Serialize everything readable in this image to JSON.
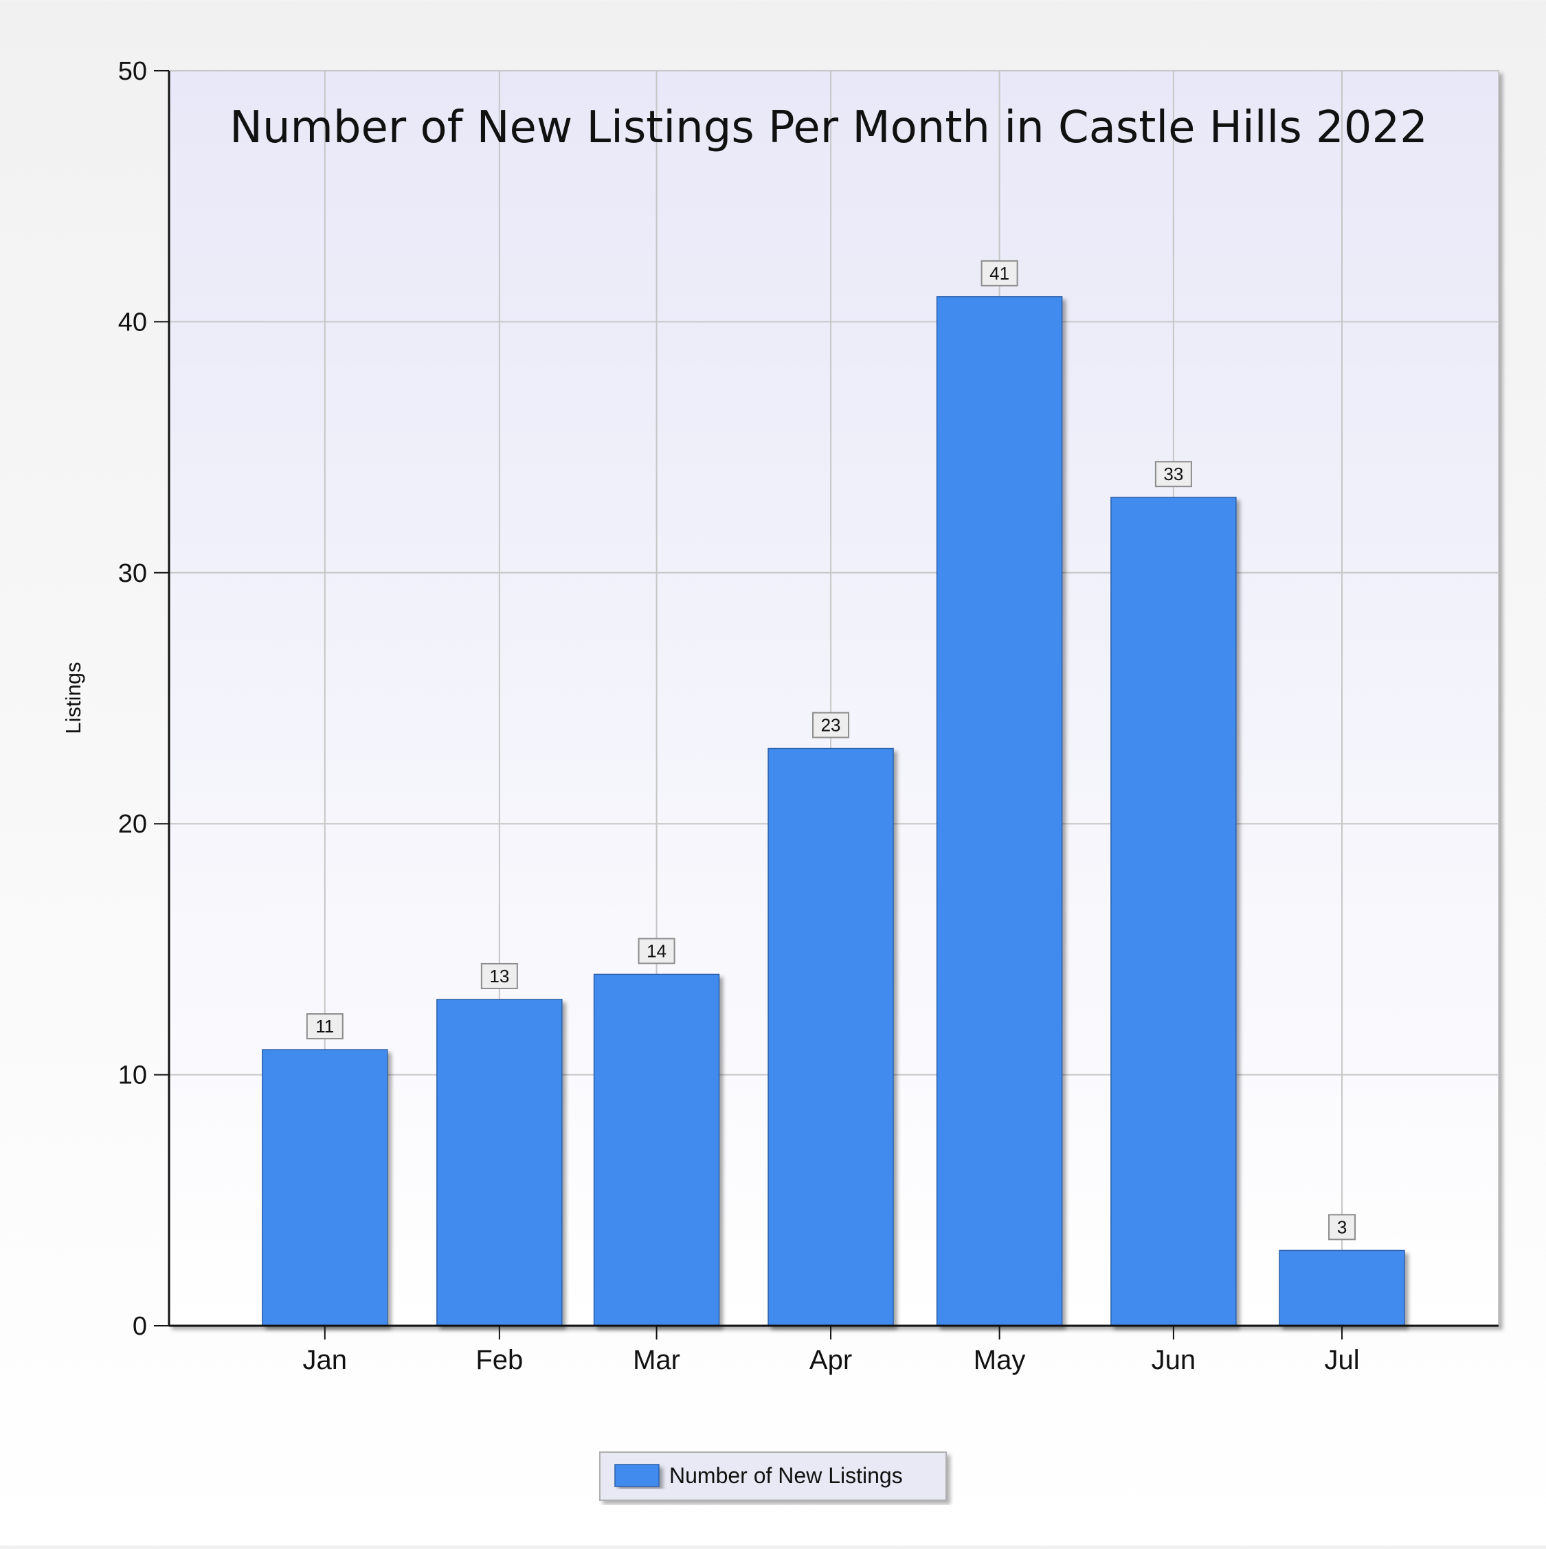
{
  "chart_data": {
    "type": "bar",
    "title": "Number of New Listings Per Month in Castle Hills 2022",
    "xlabel": "",
    "ylabel": "Listings",
    "categories": [
      "Jan",
      "Feb",
      "Mar",
      "Apr",
      "May",
      "Jun",
      "Jul"
    ],
    "series": [
      {
        "name": "Number of New Listings",
        "values": [
          11,
          13,
          14,
          23,
          41,
          33,
          3
        ],
        "color": "#428BEE"
      }
    ],
    "ylim": [
      0,
      50
    ],
    "yticks": [
      "0",
      "10",
      "20",
      "30",
      "40",
      "50"
    ],
    "grid": true,
    "data_labels": true,
    "legend_position": "bottom-center"
  }
}
